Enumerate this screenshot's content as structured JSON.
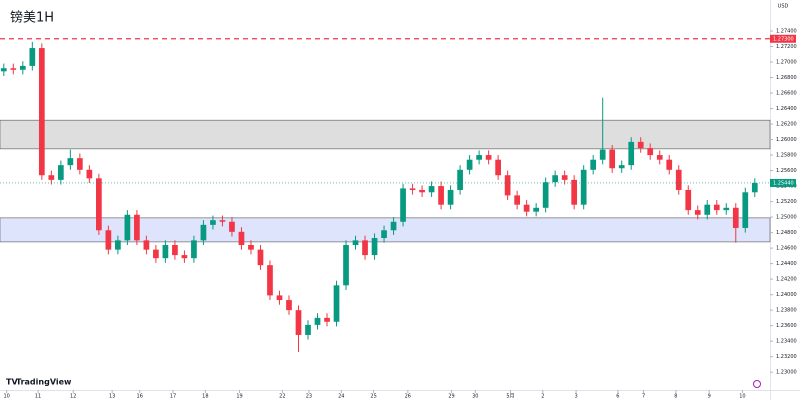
{
  "brand": "TradingView",
  "currency": "USD",
  "chart_data": {
    "type": "candlestick",
    "title": "镑美1H",
    "ylim": [
      1.2277,
      1.278
    ],
    "xlim": [
      -0.4,
      80.6
    ],
    "yticks": [
      {
        "value": 1.23,
        "label": "1.23000"
      },
      {
        "value": 1.232,
        "label": "1.23200"
      },
      {
        "value": 1.234,
        "label": "1.23400"
      },
      {
        "value": 1.236,
        "label": "1.23600"
      },
      {
        "value": 1.238,
        "label": "1.23800"
      },
      {
        "value": 1.24,
        "label": "1.24000"
      },
      {
        "value": 1.242,
        "label": "1.24200"
      },
      {
        "value": 1.244,
        "label": "1.24400"
      },
      {
        "value": 1.246,
        "label": "1.24600"
      },
      {
        "value": 1.248,
        "label": "1.24800"
      },
      {
        "value": 1.25,
        "label": "1.25000"
      },
      {
        "value": 1.252,
        "label": "1.25200"
      },
      {
        "value": 1.254,
        "label": "1.25400"
      },
      {
        "value": 1.256,
        "label": "1.25600"
      },
      {
        "value": 1.258,
        "label": "1.25800"
      },
      {
        "value": 1.26,
        "label": "1.26000"
      },
      {
        "value": 1.262,
        "label": "1.26200"
      },
      {
        "value": 1.264,
        "label": "1.26400"
      },
      {
        "value": 1.266,
        "label": "1.26600"
      },
      {
        "value": 1.268,
        "label": "1.26800"
      },
      {
        "value": 1.27,
        "label": "1.27000"
      },
      {
        "value": 1.272,
        "label": "1.27200"
      },
      {
        "value": 1.274,
        "label": "1.27400"
      }
    ],
    "xticks": [
      {
        "value": 0.3,
        "label": "10"
      },
      {
        "value": 3.6,
        "label": "11"
      },
      {
        "value": 7.3,
        "label": "12"
      },
      {
        "value": 11.4,
        "label": "13"
      },
      {
        "value": 14.3,
        "label": "16"
      },
      {
        "value": 17.8,
        "label": "17"
      },
      {
        "value": 21.2,
        "label": "18"
      },
      {
        "value": 24.8,
        "label": "19"
      },
      {
        "value": 29.3,
        "label": "22"
      },
      {
        "value": 32.1,
        "label": "23"
      },
      {
        "value": 35.5,
        "label": "24"
      },
      {
        "value": 38.9,
        "label": "25"
      },
      {
        "value": 42.5,
        "label": "26"
      },
      {
        "value": 47.1,
        "label": "29"
      },
      {
        "value": 49.6,
        "label": "30"
      },
      {
        "value": 53.3,
        "label": "5月"
      },
      {
        "value": 56.7,
        "label": "2"
      },
      {
        "value": 60.2,
        "label": "3"
      },
      {
        "value": 64.6,
        "label": "6"
      },
      {
        "value": 67.3,
        "label": "7"
      },
      {
        "value": 70.7,
        "label": "8"
      },
      {
        "value": 74.2,
        "label": "9"
      },
      {
        "value": 77.7,
        "label": "10"
      }
    ],
    "open": [
      1.2688,
      1.2692,
      1.269,
      1.2695,
      1.2718,
      1.2554,
      1.2548,
      1.2567,
      1.2576,
      1.2561,
      1.255,
      1.2483,
      1.2458,
      1.247,
      1.2503,
      1.247,
      1.2458,
      1.2447,
      1.2464,
      1.2451,
      1.2447,
      1.247,
      1.249,
      1.2496,
      1.2494,
      1.2481,
      1.2464,
      1.2458,
      1.2438,
      1.2399,
      1.2393,
      1.238,
      1.2348,
      1.2361,
      1.237,
      1.2365,
      1.2412,
      1.2464,
      1.247,
      1.2451,
      1.2473,
      1.2483,
      1.2494,
      1.2537,
      1.2535,
      1.2532,
      1.254,
      1.2516,
      1.2535,
      1.2561,
      1.2574,
      1.258,
      1.2574,
      1.2554,
      1.2528,
      1.2516,
      1.2507,
      1.2512,
      1.2545,
      1.2554,
      1.2548,
      1.2516,
      1.2561,
      1.2574,
      1.2587,
      1.2563,
      1.2567,
      1.2597,
      1.2589,
      1.258,
      1.2574,
      1.2561,
      1.2535,
      1.2509,
      1.2503,
      1.2516,
      1.2509,
      1.2512,
      1.2486,
      1.2532
    ],
    "high": [
      1.2698,
      1.2698,
      1.2701,
      1.2726,
      1.2724,
      1.256,
      1.2573,
      1.2587,
      1.2582,
      1.2567,
      1.2556,
      1.2489,
      1.2476,
      1.2509,
      1.2509,
      1.2476,
      1.2464,
      1.247,
      1.247,
      1.2457,
      1.2476,
      1.2496,
      1.2502,
      1.2502,
      1.25,
      1.2487,
      1.247,
      1.2464,
      1.2444,
      1.2405,
      1.2399,
      1.2386,
      1.2367,
      1.2376,
      1.2376,
      1.2418,
      1.247,
      1.2476,
      1.2476,
      1.2479,
      1.2489,
      1.25,
      1.2543,
      1.2543,
      1.2541,
      1.2546,
      1.2546,
      1.2541,
      1.2567,
      1.258,
      1.2586,
      1.2586,
      1.258,
      1.256,
      1.2534,
      1.2522,
      1.2518,
      1.2551,
      1.256,
      1.256,
      1.2554,
      1.2567,
      1.258,
      1.2654,
      1.2593,
      1.2573,
      1.2603,
      1.2603,
      1.2595,
      1.2586,
      1.258,
      1.2567,
      1.2541,
      1.2515,
      1.2522,
      1.2522,
      1.2518,
      1.2518,
      1.2538,
      1.255
    ],
    "low": [
      1.2682,
      1.2684,
      1.2684,
      1.2689,
      1.2548,
      1.2542,
      1.2542,
      1.2561,
      1.2555,
      1.2544,
      1.2477,
      1.2452,
      1.2452,
      1.2464,
      1.2464,
      1.2452,
      1.2441,
      1.2441,
      1.2445,
      1.2441,
      1.2441,
      1.2464,
      1.2484,
      1.2488,
      1.2475,
      1.2458,
      1.2452,
      1.2432,
      1.2393,
      1.2387,
      1.2374,
      1.2326,
      1.2342,
      1.2355,
      1.2359,
      1.2359,
      1.2406,
      1.2458,
      1.2445,
      1.2445,
      1.2467,
      1.2477,
      1.2488,
      1.2529,
      1.2526,
      1.2526,
      1.251,
      1.251,
      1.2529,
      1.2555,
      1.2568,
      1.2568,
      1.2548,
      1.2522,
      1.251,
      1.2501,
      1.2501,
      1.2506,
      1.2539,
      1.2542,
      1.251,
      1.251,
      1.2555,
      1.2568,
      1.2557,
      1.2557,
      1.2561,
      1.2583,
      1.2574,
      1.2568,
      1.2555,
      1.2529,
      1.2503,
      1.2497,
      1.2497,
      1.2503,
      1.2503,
      1.2467,
      1.248,
      1.2526
    ],
    "close": [
      1.2692,
      1.269,
      1.2695,
      1.2718,
      1.2554,
      1.2548,
      1.2567,
      1.2576,
      1.2561,
      1.255,
      1.2483,
      1.2458,
      1.247,
      1.2503,
      1.247,
      1.2458,
      1.2447,
      1.2464,
      1.2451,
      1.2447,
      1.247,
      1.249,
      1.2496,
      1.2494,
      1.2481,
      1.2464,
      1.2458,
      1.2438,
      1.2399,
      1.2393,
      1.238,
      1.2348,
      1.2361,
      1.237,
      1.2365,
      1.2412,
      1.2464,
      1.247,
      1.2451,
      1.2473,
      1.2483,
      1.2494,
      1.2537,
      1.2535,
      1.2532,
      1.254,
      1.2516,
      1.2535,
      1.2561,
      1.2574,
      1.258,
      1.2574,
      1.2554,
      1.2528,
      1.2516,
      1.2507,
      1.2512,
      1.2545,
      1.2554,
      1.2548,
      1.2516,
      1.2561,
      1.2574,
      1.2587,
      1.2563,
      1.2567,
      1.2597,
      1.2589,
      1.258,
      1.2574,
      1.2561,
      1.2535,
      1.2509,
      1.2503,
      1.2516,
      1.2509,
      1.2512,
      1.2486,
      1.2532,
      1.2544
    ],
    "up_color": "#089981",
    "down_color": "#f23645",
    "zones": [
      {
        "low": 1.2588,
        "high": 1.2625,
        "color": "#dedede"
      },
      {
        "low": 1.2468,
        "high": 1.2499,
        "color": "#dde4fb"
      }
    ],
    "levels": [
      {
        "value": 1.273,
        "label": "1.27300",
        "color": "#f23645",
        "line_style": "dashed"
      },
      {
        "value": 1.2544,
        "label": "1.25440",
        "color": "#089981",
        "line_style": "dotted"
      }
    ]
  }
}
